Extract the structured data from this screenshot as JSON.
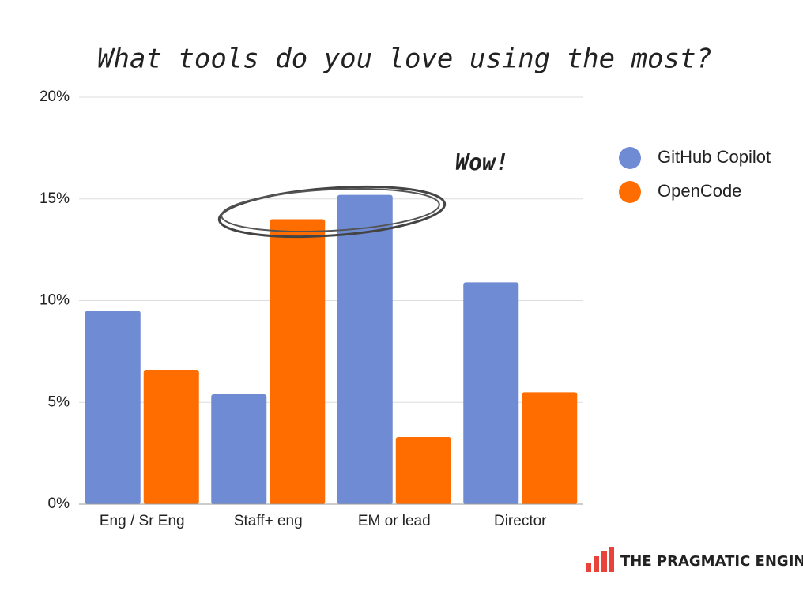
{
  "chart_data": {
    "type": "bar",
    "title": "What tools do you love using the most?",
    "annotation": "Wow!",
    "brand": "THE PRAGMATIC ENGINEER",
    "categories": [
      "Eng / Sr Eng",
      "Staff+ eng",
      "EM or lead",
      "Director"
    ],
    "series": [
      {
        "name": "GitHub Copilot",
        "color": "#6f8bd3",
        "values": [
          9.5,
          5.4,
          15.2,
          10.9
        ]
      },
      {
        "name": "OpenCode",
        "color": "#ff6d00",
        "values": [
          6.6,
          14,
          3.3,
          5.5
        ]
      }
    ],
    "ylim": [
      0,
      20
    ],
    "yticks": [
      {
        "value": 0,
        "label": "0%"
      },
      {
        "value": 5,
        "label": "5%"
      },
      {
        "value": 10,
        "label": "10%"
      },
      {
        "value": 15,
        "label": "15%"
      },
      {
        "value": 20,
        "label": "20%"
      }
    ],
    "grid": true,
    "legend": "right"
  }
}
